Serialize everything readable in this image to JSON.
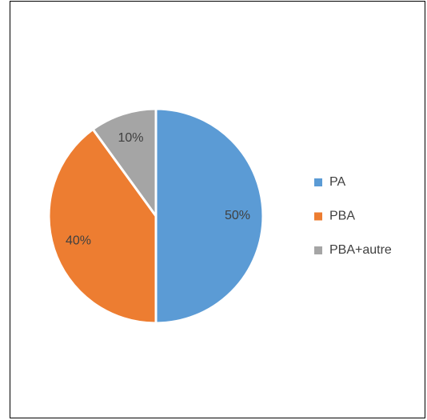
{
  "chart_data": {
    "type": "pie",
    "categories": [
      "PA",
      "PBA",
      "PBA+autre"
    ],
    "values": [
      50,
      40,
      10
    ],
    "value_labels": [
      "50%",
      "40%",
      "10%"
    ],
    "colors": [
      "#5b9bd5",
      "#ed7d31",
      "#a5a5a5"
    ],
    "legend": "right"
  }
}
